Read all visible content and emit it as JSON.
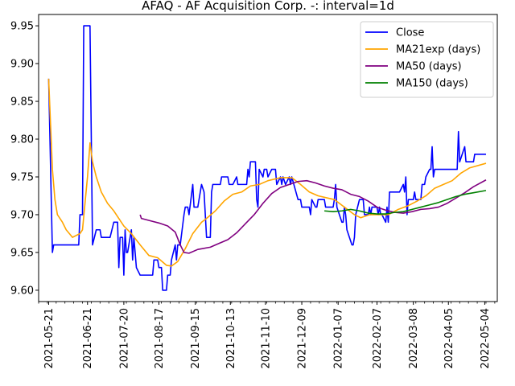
{
  "chart_data": {
    "type": "line",
    "title": "AFAQ - AF Acquisition Corp. -: interval=1d",
    "xlabel": "",
    "ylabel": "",
    "ylim": [
      9.585,
      9.965
    ],
    "xlim": [
      "2021-05-13",
      "2022-05-14"
    ],
    "grid": false,
    "legend_position": "top-right",
    "x_ticks": [
      "2021-05-21",
      "2021-06-21",
      "2021-07-20",
      "2021-08-17",
      "2021-09-15",
      "2021-10-13",
      "2021-11-10",
      "2021-12-09",
      "2022-01-07",
      "2022-02-07",
      "2022-03-08",
      "2022-04-05",
      "2022-05-04"
    ],
    "y_ticks": [
      "9.60",
      "9.65",
      "9.70",
      "9.75",
      "9.80",
      "9.85",
      "9.90",
      "9.95"
    ],
    "series": [
      {
        "name": "Close",
        "color": "#0000ff",
        "points": [
          [
            "2021-05-21",
            9.88
          ],
          [
            "2021-05-24",
            9.65
          ],
          [
            "2021-05-25",
            9.66
          ],
          [
            "2021-06-01",
            9.66
          ],
          [
            "2021-06-10",
            9.66
          ],
          [
            "2021-06-14",
            9.66
          ],
          [
            "2021-06-15",
            9.7
          ],
          [
            "2021-06-17",
            9.7
          ],
          [
            "2021-06-18",
            9.95
          ],
          [
            "2021-06-23",
            9.95
          ],
          [
            "2021-06-25",
            9.66
          ],
          [
            "2021-06-28",
            9.68
          ],
          [
            "2021-07-01",
            9.68
          ],
          [
            "2021-07-02",
            9.67
          ],
          [
            "2021-07-09",
            9.67
          ],
          [
            "2021-07-12",
            9.69
          ],
          [
            "2021-07-15",
            9.69
          ],
          [
            "2021-07-16",
            9.63
          ],
          [
            "2021-07-17",
            9.67
          ],
          [
            "2021-07-19",
            9.67
          ],
          [
            "2021-07-20",
            9.62
          ],
          [
            "2021-07-21",
            9.68
          ],
          [
            "2021-07-22",
            9.65
          ],
          [
            "2021-07-23",
            9.65
          ],
          [
            "2021-07-26",
            9.68
          ],
          [
            "2021-07-27",
            9.64
          ],
          [
            "2021-07-28",
            9.67
          ],
          [
            "2021-07-30",
            9.63
          ],
          [
            "2021-08-02",
            9.62
          ],
          [
            "2021-08-12",
            9.62
          ],
          [
            "2021-08-13",
            9.64
          ],
          [
            "2021-08-16",
            9.64
          ],
          [
            "2021-08-17",
            9.63
          ],
          [
            "2021-08-19",
            9.63
          ],
          [
            "2021-08-20",
            9.6
          ],
          [
            "2021-08-23",
            9.6
          ],
          [
            "2021-08-24",
            9.62
          ],
          [
            "2021-08-26",
            9.62
          ],
          [
            "2021-08-27",
            9.64
          ],
          [
            "2021-08-30",
            9.66
          ],
          [
            "2021-08-31",
            9.64
          ],
          [
            "2021-09-01",
            9.66
          ],
          [
            "2021-09-03",
            9.66
          ],
          [
            "2021-09-06",
            9.7
          ],
          [
            "2021-09-07",
            9.71
          ],
          [
            "2021-09-09",
            9.71
          ],
          [
            "2021-09-10",
            9.7
          ],
          [
            "2021-09-13",
            9.74
          ],
          [
            "2021-09-14",
            9.71
          ],
          [
            "2021-09-17",
            9.71
          ],
          [
            "2021-09-20",
            9.74
          ],
          [
            "2021-09-22",
            9.73
          ],
          [
            "2021-09-24",
            9.67
          ],
          [
            "2021-09-27",
            9.67
          ],
          [
            "2021-09-28",
            9.73
          ],
          [
            "2021-09-29",
            9.74
          ],
          [
            "2021-10-05",
            9.74
          ],
          [
            "2021-10-06",
            9.75
          ],
          [
            "2021-10-11",
            9.75
          ],
          [
            "2021-10-12",
            9.74
          ],
          [
            "2021-10-15",
            9.74
          ],
          [
            "2021-10-18",
            9.75
          ],
          [
            "2021-10-19",
            9.74
          ],
          [
            "2021-10-26",
            9.74
          ],
          [
            "2021-10-27",
            9.76
          ],
          [
            "2021-10-28",
            9.75
          ],
          [
            "2021-10-29",
            9.77
          ],
          [
            "2021-11-02",
            9.77
          ],
          [
            "2021-11-03",
            9.72
          ],
          [
            "2021-11-04",
            9.71
          ],
          [
            "2021-11-05",
            9.76
          ],
          [
            "2021-11-08",
            9.75
          ],
          [
            "2021-11-09",
            9.76
          ],
          [
            "2021-11-11",
            9.76
          ],
          [
            "2021-11-12",
            9.75
          ],
          [
            "2021-11-15",
            9.76
          ],
          [
            "2021-11-18",
            9.76
          ],
          [
            "2021-11-19",
            9.74
          ],
          [
            "2021-11-22",
            9.75
          ],
          [
            "2021-11-23",
            9.74
          ],
          [
            "2021-11-24",
            9.75
          ],
          [
            "2021-11-26",
            9.74
          ],
          [
            "2021-11-29",
            9.75
          ],
          [
            "2021-11-30",
            9.74
          ],
          [
            "2021-12-01",
            9.75
          ],
          [
            "2021-12-06",
            9.72
          ],
          [
            "2021-12-08",
            9.72
          ],
          [
            "2021-12-09",
            9.71
          ],
          [
            "2021-12-15",
            9.71
          ],
          [
            "2021-12-16",
            9.7
          ],
          [
            "2021-12-17",
            9.72
          ],
          [
            "2021-12-20",
            9.71
          ],
          [
            "2021-12-21",
            9.71
          ],
          [
            "2021-12-22",
            9.72
          ],
          [
            "2021-12-27",
            9.72
          ],
          [
            "2021-12-28",
            9.71
          ],
          [
            "2022-01-03",
            9.71
          ],
          [
            "2022-01-04",
            9.72
          ],
          [
            "2022-01-05",
            9.74
          ],
          [
            "2022-01-06",
            9.71
          ],
          [
            "2022-01-10",
            9.69
          ],
          [
            "2022-01-11",
            9.69
          ],
          [
            "2022-01-12",
            9.71
          ],
          [
            "2022-01-13",
            9.7
          ],
          [
            "2022-01-14",
            9.68
          ],
          [
            "2022-01-18",
            9.66
          ],
          [
            "2022-01-19",
            9.66
          ],
          [
            "2022-01-20",
            9.67
          ],
          [
            "2022-01-21",
            9.7
          ],
          [
            "2022-01-24",
            9.72
          ],
          [
            "2022-01-27",
            9.72
          ],
          [
            "2022-01-28",
            9.7
          ],
          [
            "2022-01-31",
            9.7
          ],
          [
            "2022-02-01",
            9.71
          ],
          [
            "2022-02-02",
            9.7
          ],
          [
            "2022-02-03",
            9.71
          ],
          [
            "2022-02-07",
            9.71
          ],
          [
            "2022-02-08",
            9.7
          ],
          [
            "2022-02-09",
            9.71
          ],
          [
            "2022-02-10",
            9.7
          ],
          [
            "2022-02-11",
            9.7
          ],
          [
            "2022-02-14",
            9.69
          ],
          [
            "2022-02-15",
            9.71
          ],
          [
            "2022-02-16",
            9.69
          ],
          [
            "2022-02-17",
            9.73
          ],
          [
            "2022-02-25",
            9.73
          ],
          [
            "2022-02-28",
            9.74
          ],
          [
            "2022-03-01",
            9.73
          ],
          [
            "2022-03-02",
            9.75
          ],
          [
            "2022-03-03",
            9.7
          ],
          [
            "2022-03-04",
            9.72
          ],
          [
            "2022-03-08",
            9.72
          ],
          [
            "2022-03-09",
            9.73
          ],
          [
            "2022-03-10",
            9.72
          ],
          [
            "2022-03-14",
            9.72
          ],
          [
            "2022-03-15",
            9.74
          ],
          [
            "2022-03-17",
            9.74
          ],
          [
            "2022-03-18",
            9.75
          ],
          [
            "2022-03-21",
            9.76
          ],
          [
            "2022-03-22",
            9.76
          ],
          [
            "2022-03-23",
            9.79
          ],
          [
            "2022-03-24",
            9.75
          ],
          [
            "2022-03-25",
            9.76
          ],
          [
            "2022-04-12",
            9.76
          ],
          [
            "2022-04-13",
            9.81
          ],
          [
            "2022-04-14",
            9.77
          ],
          [
            "2022-04-18",
            9.79
          ],
          [
            "2022-04-19",
            9.77
          ],
          [
            "2022-04-25",
            9.77
          ],
          [
            "2022-04-26",
            9.78
          ],
          [
            "2022-05-05",
            9.78
          ]
        ]
      },
      {
        "name": "MA21exp (days)",
        "color": "#ffa500",
        "points": [
          [
            "2021-05-21",
            9.88
          ],
          [
            "2021-05-24",
            9.76
          ],
          [
            "2021-05-26",
            9.72
          ],
          [
            "2021-05-28",
            9.7
          ],
          [
            "2021-06-01",
            9.69
          ],
          [
            "2021-06-04",
            9.68
          ],
          [
            "2021-06-09",
            9.67
          ],
          [
            "2021-06-15",
            9.675
          ],
          [
            "2021-06-17",
            9.68
          ],
          [
            "2021-06-21",
            9.75
          ],
          [
            "2021-06-23",
            9.795
          ],
          [
            "2021-06-25",
            9.77
          ],
          [
            "2021-06-28",
            9.75
          ],
          [
            "2021-07-02",
            9.73
          ],
          [
            "2021-07-07",
            9.715
          ],
          [
            "2021-07-12",
            9.705
          ],
          [
            "2021-07-16",
            9.695
          ],
          [
            "2021-07-20",
            9.685
          ],
          [
            "2021-07-26",
            9.675
          ],
          [
            "2021-08-02",
            9.66
          ],
          [
            "2021-08-09",
            9.646
          ],
          [
            "2021-08-16",
            9.643
          ],
          [
            "2021-08-23",
            9.633
          ],
          [
            "2021-08-27",
            9.632
          ],
          [
            "2021-09-01",
            9.638
          ],
          [
            "2021-09-07",
            9.655
          ],
          [
            "2021-09-13",
            9.675
          ],
          [
            "2021-09-20",
            9.69
          ],
          [
            "2021-09-24",
            9.695
          ],
          [
            "2021-10-01",
            9.705
          ],
          [
            "2021-10-08",
            9.718
          ],
          [
            "2021-10-15",
            9.727
          ],
          [
            "2021-10-22",
            9.73
          ],
          [
            "2021-10-29",
            9.738
          ],
          [
            "2021-11-05",
            9.74
          ],
          [
            "2021-11-12",
            9.745
          ],
          [
            "2021-11-22",
            9.749
          ],
          [
            "2021-12-01",
            9.749
          ],
          [
            "2021-12-08",
            9.74
          ],
          [
            "2021-12-15",
            9.73
          ],
          [
            "2021-12-22",
            9.725
          ],
          [
            "2022-01-04",
            9.72
          ],
          [
            "2022-01-12",
            9.71
          ],
          [
            "2022-01-20",
            9.7
          ],
          [
            "2022-01-25",
            9.696
          ],
          [
            "2022-02-01",
            9.7
          ],
          [
            "2022-02-08",
            9.7
          ],
          [
            "2022-02-16",
            9.7
          ],
          [
            "2022-02-24",
            9.707
          ],
          [
            "2022-03-04",
            9.712
          ],
          [
            "2022-03-11",
            9.718
          ],
          [
            "2022-03-18",
            9.725
          ],
          [
            "2022-03-25",
            9.735
          ],
          [
            "2022-04-01",
            9.74
          ],
          [
            "2022-04-08",
            9.745
          ],
          [
            "2022-04-15",
            9.755
          ],
          [
            "2022-04-22",
            9.762
          ],
          [
            "2022-05-05",
            9.768
          ]
        ]
      },
      {
        "name": "MA50 (days)",
        "color": "#800080",
        "points": [
          [
            "2021-08-02",
            9.7
          ],
          [
            "2021-08-03",
            9.695
          ],
          [
            "2021-08-10",
            9.692
          ],
          [
            "2021-08-17",
            9.689
          ],
          [
            "2021-08-24",
            9.685
          ],
          [
            "2021-08-30",
            9.677
          ],
          [
            "2021-09-03",
            9.66
          ],
          [
            "2021-09-06",
            9.65
          ],
          [
            "2021-09-10",
            9.649
          ],
          [
            "2021-09-17",
            9.654
          ],
          [
            "2021-09-27",
            9.657
          ],
          [
            "2021-10-04",
            9.662
          ],
          [
            "2021-10-11",
            9.667
          ],
          [
            "2021-10-18",
            9.676
          ],
          [
            "2021-10-25",
            9.688
          ],
          [
            "2021-11-01",
            9.7
          ],
          [
            "2021-11-08",
            9.715
          ],
          [
            "2021-11-15",
            9.728
          ],
          [
            "2021-11-22",
            9.736
          ],
          [
            "2021-11-29",
            9.74
          ],
          [
            "2021-12-06",
            9.744
          ],
          [
            "2021-12-13",
            9.745
          ],
          [
            "2021-12-20",
            9.742
          ],
          [
            "2021-12-27",
            9.738
          ],
          [
            "2022-01-03",
            9.735
          ],
          [
            "2022-01-10",
            9.733
          ],
          [
            "2022-01-17",
            9.727
          ],
          [
            "2022-01-24",
            9.724
          ],
          [
            "2022-01-31",
            9.718
          ],
          [
            "2022-02-07",
            9.71
          ],
          [
            "2022-02-14",
            9.706
          ],
          [
            "2022-02-21",
            9.703
          ],
          [
            "2022-02-28",
            9.702
          ],
          [
            "2022-03-07",
            9.704
          ],
          [
            "2022-03-14",
            9.707
          ],
          [
            "2022-03-21",
            9.708
          ],
          [
            "2022-03-28",
            9.71
          ],
          [
            "2022-04-04",
            9.715
          ],
          [
            "2022-04-11",
            9.722
          ],
          [
            "2022-04-18",
            9.729
          ],
          [
            "2022-04-25",
            9.737
          ],
          [
            "2022-05-05",
            9.746
          ]
        ]
      },
      {
        "name": "MA150 (days)",
        "color": "#008000",
        "points": [
          [
            "2021-12-27",
            9.705
          ],
          [
            "2022-01-03",
            9.704
          ],
          [
            "2022-01-10",
            9.705
          ],
          [
            "2022-01-17",
            9.707
          ],
          [
            "2022-01-24",
            9.705
          ],
          [
            "2022-01-31",
            9.702
          ],
          [
            "2022-02-07",
            9.701
          ],
          [
            "2022-02-14",
            9.701
          ],
          [
            "2022-02-21",
            9.703
          ],
          [
            "2022-02-28",
            9.704
          ],
          [
            "2022-03-07",
            9.707
          ],
          [
            "2022-03-14",
            9.71
          ],
          [
            "2022-03-21",
            9.713
          ],
          [
            "2022-03-28",
            9.716
          ],
          [
            "2022-04-04",
            9.72
          ],
          [
            "2022-04-11",
            9.724
          ],
          [
            "2022-04-18",
            9.727
          ],
          [
            "2022-04-25",
            9.729
          ],
          [
            "2022-05-05",
            9.732
          ]
        ]
      }
    ]
  }
}
